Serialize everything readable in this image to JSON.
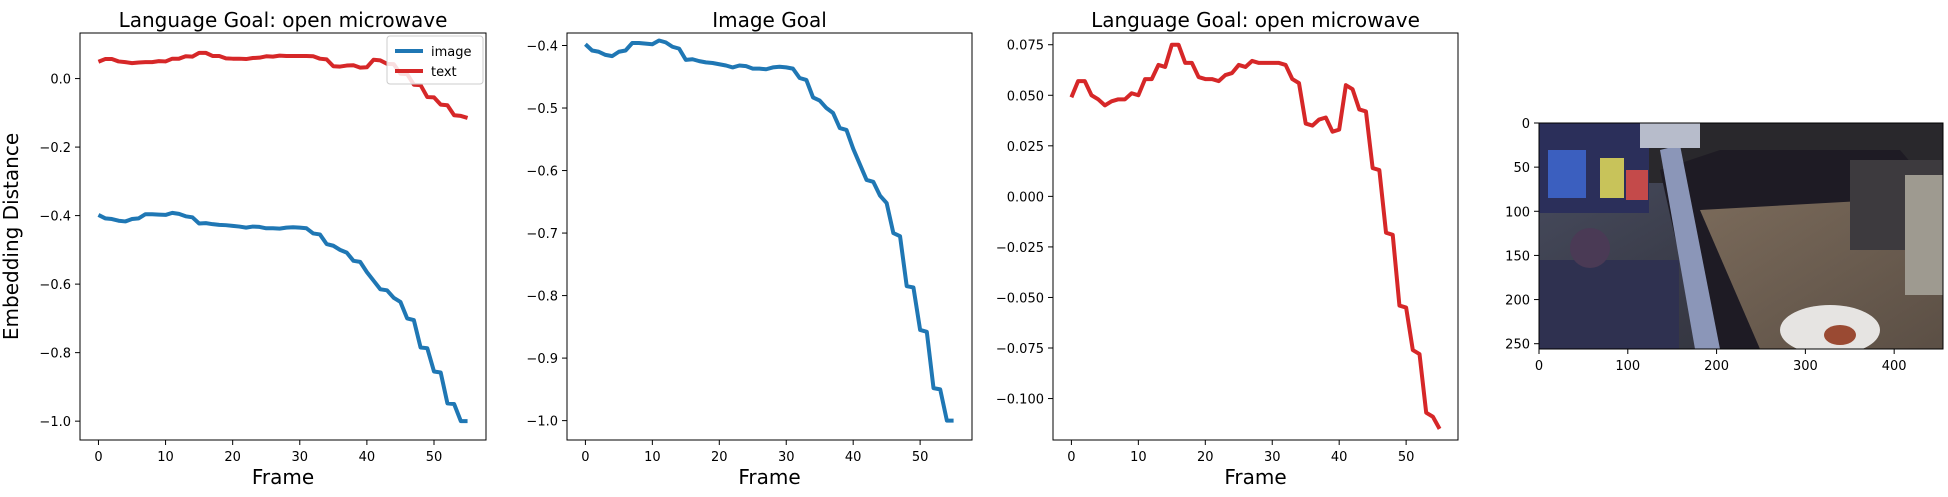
{
  "colors": {
    "image": "#1f77b4",
    "text": "#d62728",
    "axes": "#000000",
    "legend_border": "#cccccc"
  },
  "chart_data": [
    {
      "type": "line",
      "title": "Language Goal: open microwave",
      "xlabel": "Frame",
      "ylabel": "Embedding Distance",
      "xlim": [
        -2.75,
        57.75
      ],
      "ylim": [
        -1.055,
        0.133
      ],
      "xticks": [
        0,
        10,
        20,
        30,
        40,
        50
      ],
      "yticks": [
        0.0,
        -0.2,
        -0.4,
        -0.6,
        -0.8,
        -1.0
      ],
      "ytick_labels": [
        "0.0",
        "−0.2",
        "−0.4",
        "−0.6",
        "−0.8",
        "−1.0"
      ],
      "legend": {
        "placement": "top-right",
        "entries": [
          "image",
          "text"
        ]
      },
      "series": [
        {
          "name": "image",
          "color": "#1f77b4",
          "x": [
            0,
            1,
            2,
            3,
            4,
            5,
            6,
            7,
            8,
            9,
            10,
            11,
            12,
            13,
            14,
            15,
            16,
            17,
            18,
            19,
            20,
            21,
            22,
            23,
            24,
            25,
            26,
            27,
            28,
            29,
            30,
            31,
            32,
            33,
            34,
            35,
            36,
            37,
            38,
            39,
            40,
            41,
            42,
            43,
            44,
            45,
            46,
            47,
            48,
            49,
            50,
            51,
            52,
            53,
            54,
            55
          ],
          "y": [
            -0.398,
            -0.408,
            -0.41,
            -0.415,
            -0.417,
            -0.41,
            -0.408,
            -0.396,
            -0.396,
            -0.397,
            -0.398,
            -0.392,
            -0.395,
            -0.402,
            -0.405,
            -0.423,
            -0.422,
            -0.425,
            -0.427,
            -0.428,
            -0.43,
            -0.432,
            -0.435,
            -0.432,
            -0.433,
            -0.437,
            -0.437,
            -0.438,
            -0.435,
            -0.434,
            -0.435,
            -0.437,
            -0.452,
            -0.455,
            -0.483,
            -0.488,
            -0.5,
            -0.508,
            -0.532,
            -0.535,
            -0.565,
            -0.59,
            -0.615,
            -0.618,
            -0.64,
            -0.652,
            -0.7,
            -0.705,
            -0.785,
            -0.787,
            -0.855,
            -0.858,
            -0.948,
            -0.95,
            -1.0,
            -1.0
          ]
        },
        {
          "name": "text",
          "color": "#d62728",
          "x": [
            0,
            1,
            2,
            3,
            4,
            5,
            6,
            7,
            8,
            9,
            10,
            11,
            12,
            13,
            14,
            15,
            16,
            17,
            18,
            19,
            20,
            21,
            22,
            23,
            24,
            25,
            26,
            27,
            28,
            29,
            30,
            31,
            32,
            33,
            34,
            35,
            36,
            37,
            38,
            39,
            40,
            41,
            42,
            43,
            44,
            45,
            46,
            47,
            48,
            49,
            50,
            51,
            52,
            53,
            54,
            55
          ],
          "y": [
            0.049,
            0.057,
            0.057,
            0.05,
            0.048,
            0.045,
            0.047,
            0.048,
            0.048,
            0.051,
            0.05,
            0.058,
            0.058,
            0.065,
            0.064,
            0.075,
            0.075,
            0.066,
            0.066,
            0.059,
            0.058,
            0.058,
            0.057,
            0.06,
            0.061,
            0.065,
            0.064,
            0.067,
            0.066,
            0.066,
            0.066,
            0.066,
            0.065,
            0.058,
            0.056,
            0.036,
            0.035,
            0.038,
            0.039,
            0.032,
            0.033,
            0.055,
            0.053,
            0.043,
            0.042,
            0.014,
            0.013,
            -0.018,
            -0.019,
            -0.054,
            -0.055,
            -0.076,
            -0.078,
            -0.107,
            -0.109,
            -0.115
          ]
        }
      ]
    },
    {
      "type": "line",
      "title": "Image Goal",
      "xlabel": "Frame",
      "ylabel": "",
      "xlim": [
        -2.75,
        57.75
      ],
      "ylim": [
        -1.031,
        -0.38
      ],
      "xticks": [
        0,
        10,
        20,
        30,
        40,
        50
      ],
      "yticks": [
        -0.4,
        -0.5,
        -0.6,
        -0.7,
        -0.8,
        -0.9,
        -1.0
      ],
      "ytick_labels": [
        "−0.4",
        "−0.5",
        "−0.6",
        "−0.7",
        "−0.8",
        "−0.9",
        "−1.0"
      ],
      "series": [
        {
          "color": "#1f77b4",
          "x": [
            0,
            1,
            2,
            3,
            4,
            5,
            6,
            7,
            8,
            9,
            10,
            11,
            12,
            13,
            14,
            15,
            16,
            17,
            18,
            19,
            20,
            21,
            22,
            23,
            24,
            25,
            26,
            27,
            28,
            29,
            30,
            31,
            32,
            33,
            34,
            35,
            36,
            37,
            38,
            39,
            40,
            41,
            42,
            43,
            44,
            45,
            46,
            47,
            48,
            49,
            50,
            51,
            52,
            53,
            54,
            55
          ],
          "y": [
            -0.398,
            -0.408,
            -0.41,
            -0.415,
            -0.417,
            -0.41,
            -0.408,
            -0.396,
            -0.396,
            -0.397,
            -0.398,
            -0.392,
            -0.395,
            -0.402,
            -0.405,
            -0.423,
            -0.422,
            -0.425,
            -0.427,
            -0.428,
            -0.43,
            -0.432,
            -0.435,
            -0.432,
            -0.433,
            -0.437,
            -0.437,
            -0.438,
            -0.435,
            -0.434,
            -0.435,
            -0.437,
            -0.452,
            -0.455,
            -0.483,
            -0.488,
            -0.5,
            -0.508,
            -0.532,
            -0.535,
            -0.565,
            -0.59,
            -0.615,
            -0.618,
            -0.64,
            -0.652,
            -0.7,
            -0.705,
            -0.785,
            -0.787,
            -0.855,
            -0.858,
            -0.948,
            -0.95,
            -1.0,
            -1.0
          ]
        }
      ]
    },
    {
      "type": "line",
      "title": "Language Goal: open microwave",
      "xlabel": "Frame",
      "ylabel": "",
      "xlim": [
        -2.75,
        57.75
      ],
      "ylim": [
        -0.1205,
        0.0808
      ],
      "xticks": [
        0,
        10,
        20,
        30,
        40,
        50
      ],
      "yticks": [
        0.075,
        0.05,
        0.025,
        0.0,
        -0.025,
        -0.05,
        -0.075,
        -0.1
      ],
      "ytick_labels": [
        "0.075",
        "0.050",
        "0.025",
        "0.000",
        "−0.025",
        "−0.050",
        "−0.075",
        "−0.100"
      ],
      "series": [
        {
          "color": "#d62728",
          "x": [
            0,
            1,
            2,
            3,
            4,
            5,
            6,
            7,
            8,
            9,
            10,
            11,
            12,
            13,
            14,
            15,
            16,
            17,
            18,
            19,
            20,
            21,
            22,
            23,
            24,
            25,
            26,
            27,
            28,
            29,
            30,
            31,
            32,
            33,
            34,
            35,
            36,
            37,
            38,
            39,
            40,
            41,
            42,
            43,
            44,
            45,
            46,
            47,
            48,
            49,
            50,
            51,
            52,
            53,
            54,
            55
          ],
          "y": [
            0.049,
            0.057,
            0.057,
            0.05,
            0.048,
            0.045,
            0.047,
            0.048,
            0.048,
            0.051,
            0.05,
            0.058,
            0.058,
            0.065,
            0.064,
            0.075,
            0.075,
            0.066,
            0.066,
            0.059,
            0.058,
            0.058,
            0.057,
            0.06,
            0.061,
            0.065,
            0.064,
            0.067,
            0.066,
            0.066,
            0.066,
            0.066,
            0.065,
            0.058,
            0.056,
            0.036,
            0.035,
            0.038,
            0.039,
            0.032,
            0.033,
            0.055,
            0.053,
            0.043,
            0.042,
            0.014,
            0.013,
            -0.018,
            -0.019,
            -0.054,
            -0.055,
            -0.076,
            -0.078,
            -0.107,
            -0.109,
            -0.115
          ]
        }
      ]
    },
    {
      "type": "image",
      "title": "",
      "xlim": [
        0,
        455
      ],
      "ylim": [
        256,
        0
      ],
      "xticks": [
        0,
        100,
        200,
        300,
        400
      ],
      "yticks": [
        0,
        50,
        100,
        150,
        200,
        250
      ]
    }
  ]
}
